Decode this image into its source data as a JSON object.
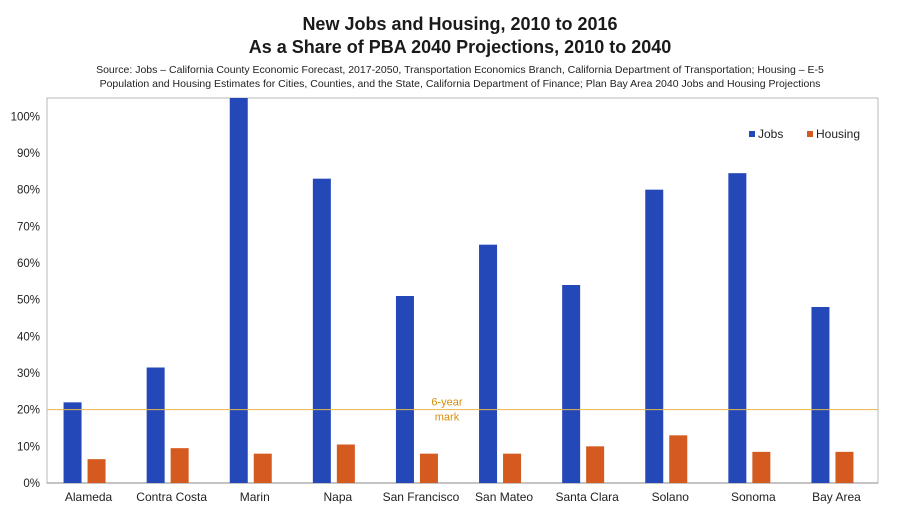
{
  "header": {
    "title_line1": "New Jobs and Housing, 2010 to 2016",
    "title_line2": "As a Share of PBA 2040 Projections, 2010 to 2040",
    "source_line1": "Source: Jobs – California County Economic Forecast, 2017-2050, Transportation Economics Branch, California Department of Transportation; Housing – E-5",
    "source_line2": "Population and Housing Estimates for Cities, Counties, and the State, California Department of Finance; Plan Bay Area 2040 Jobs and Housing Projections"
  },
  "chart_data": {
    "type": "bar",
    "title": "New Jobs and Housing, 2010 to 2016 / As a Share of PBA 2040 Projections, 2010 to 2040",
    "categories": [
      "Alameda",
      "Contra Costa",
      "Marin",
      "Napa",
      "San Francisco",
      "San Mateo",
      "Santa Clara",
      "Solano",
      "Sonoma",
      "Bay Area"
    ],
    "series": [
      {
        "name": "Jobs",
        "color": "#2448b8",
        "values": [
          22,
          31.5,
          105,
          83,
          51,
          65,
          54,
          80,
          84.5,
          48
        ]
      },
      {
        "name": "Housing",
        "color": "#d45a20",
        "values": [
          6.5,
          9.5,
          8,
          10.5,
          8,
          8,
          10,
          13,
          8.5,
          8.5
        ]
      }
    ],
    "yticks": [
      "0%",
      "10%",
      "20%",
      "30%",
      "40%",
      "50%",
      "60%",
      "70%",
      "80%",
      "90%",
      "100%"
    ],
    "ylim": [
      0,
      105
    ],
    "xlabel": "",
    "ylabel": "",
    "legend_position": "top-right",
    "grid": false,
    "reference_line": {
      "value": 20,
      "label_line1": "6-year",
      "label_line2": "mark",
      "color": "#e8b84a"
    }
  }
}
